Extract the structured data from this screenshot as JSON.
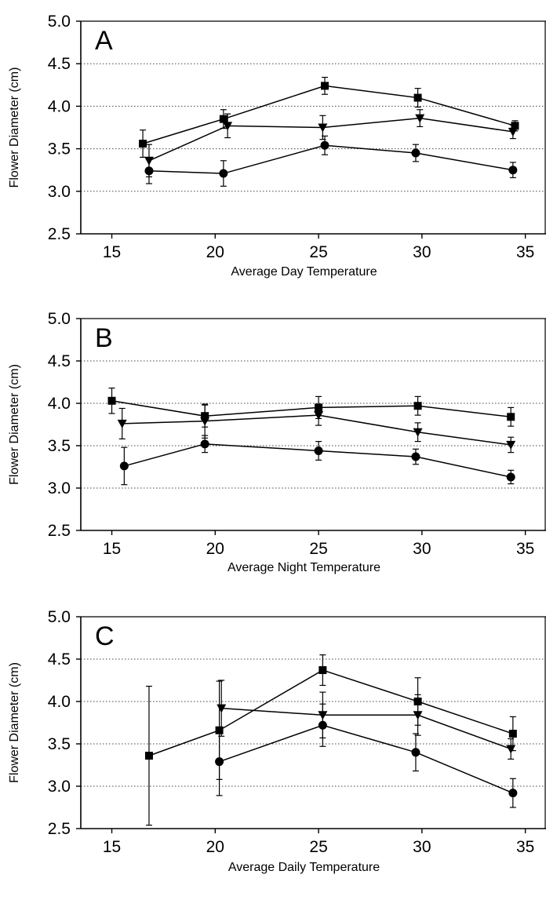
{
  "chart_data": [
    {
      "type": "line",
      "panel_label": "A",
      "xlabel": "Average Day Temperature",
      "ylabel": "Flower Diameter (cm)",
      "xlim": [
        13.5,
        36
      ],
      "ylim": [
        2.5,
        5.0
      ],
      "xticks": [
        "15",
        "20",
        "25",
        "30",
        "35"
      ],
      "yticks": [
        "2.5",
        "3.0",
        "3.5",
        "4.0",
        "4.5",
        "5.0"
      ],
      "grid": "horizontal-dotted",
      "series": [
        {
          "marker": "square",
          "x": [
            16.5,
            20.4,
            25.3,
            29.8,
            34.5
          ],
          "y": [
            3.56,
            3.85,
            4.24,
            4.1,
            3.77
          ],
          "err": [
            0.16,
            0.11,
            0.1,
            0.11,
            0.06
          ]
        },
        {
          "marker": "triangle-down",
          "x": [
            16.8,
            20.6,
            25.2,
            29.9,
            34.4
          ],
          "y": [
            3.36,
            3.77,
            3.75,
            3.86,
            3.7
          ],
          "err": [
            0.19,
            0.14,
            0.14,
            0.1,
            0.08
          ]
        },
        {
          "marker": "circle",
          "x": [
            16.8,
            20.4,
            25.3,
            29.7,
            34.4
          ],
          "y": [
            3.24,
            3.21,
            3.54,
            3.45,
            3.25
          ],
          "err": [
            0.15,
            0.15,
            0.11,
            0.1,
            0.09
          ]
        }
      ]
    },
    {
      "type": "line",
      "panel_label": "B",
      "xlabel": "Average Night Temperature",
      "ylabel": "Flower Diameter (cm)",
      "xlim": [
        13.5,
        36
      ],
      "ylim": [
        2.5,
        5.0
      ],
      "xticks": [
        "15",
        "20",
        "25",
        "30",
        "35"
      ],
      "yticks": [
        "2.5",
        "3.0",
        "3.5",
        "4.0",
        "4.5",
        "5.0"
      ],
      "grid": "horizontal-dotted",
      "series": [
        {
          "marker": "square",
          "x": [
            15.0,
            19.5,
            25.0,
            29.8,
            34.3
          ],
          "y": [
            4.03,
            3.85,
            3.95,
            3.97,
            3.84
          ],
          "err": [
            0.15,
            0.13,
            0.13,
            0.11,
            0.11
          ]
        },
        {
          "marker": "triangle-down",
          "x": [
            15.5,
            19.5,
            25.0,
            29.8,
            34.3
          ],
          "y": [
            3.76,
            3.79,
            3.86,
            3.66,
            3.51
          ],
          "err": [
            0.18,
            0.2,
            0.12,
            0.11,
            0.09
          ]
        },
        {
          "marker": "circle",
          "x": [
            15.6,
            19.5,
            25.0,
            29.7,
            34.3
          ],
          "y": [
            3.26,
            3.52,
            3.44,
            3.37,
            3.13
          ],
          "err": [
            0.22,
            0.1,
            0.11,
            0.09,
            0.08
          ]
        }
      ]
    },
    {
      "type": "line",
      "panel_label": "C",
      "xlabel": "Average Daily Temperature",
      "ylabel": "Flower Diameter (cm)",
      "xlim": [
        13.5,
        36
      ],
      "ylim": [
        2.5,
        5.0
      ],
      "xticks": [
        "15",
        "20",
        "25",
        "30",
        "35"
      ],
      "yticks": [
        "2.5",
        "3.0",
        "3.5",
        "4.0",
        "4.5",
        "5.0"
      ],
      "grid": "horizontal-dotted",
      "series": [
        {
          "marker": "square",
          "x": [
            16.8,
            20.2,
            25.2,
            29.8,
            34.4
          ],
          "y": [
            3.36,
            3.66,
            4.37,
            4.0,
            3.62
          ],
          "err": [
            0.82,
            0.58,
            0.18,
            0.28,
            0.2
          ]
        },
        {
          "marker": "triangle-down",
          "x": [
            20.3,
            25.2,
            29.8,
            34.3
          ],
          "y": [
            3.92,
            3.84,
            3.84,
            3.44
          ],
          "err": [
            0.33,
            0.27,
            0.24,
            0.12
          ]
        },
        {
          "marker": "circle",
          "x": [
            20.2,
            25.2,
            29.7,
            34.4
          ],
          "y": [
            3.29,
            3.72,
            3.4,
            2.92
          ],
          "err": [
            0.4,
            0.25,
            0.22,
            0.17
          ]
        }
      ]
    }
  ]
}
